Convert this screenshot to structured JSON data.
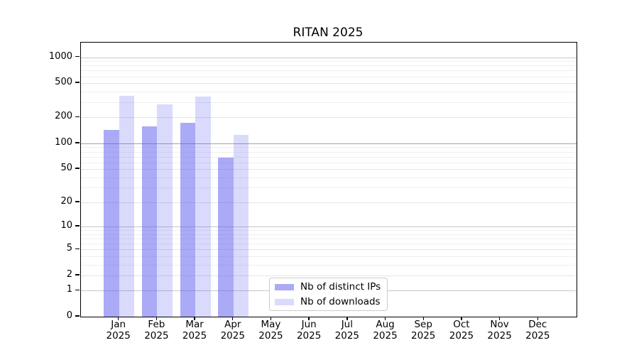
{
  "title": "RITAN 2025",
  "chart_data": {
    "type": "bar",
    "title": "RITAN 2025",
    "y_scale": "log10(1+y)",
    "months": [
      "Jan",
      "Feb",
      "Mar",
      "Apr",
      "May",
      "Jun",
      "Jul",
      "Aug",
      "Sep",
      "Oct",
      "Nov",
      "Dec"
    ],
    "year": "2025",
    "categories": [
      "Jan 2025",
      "Feb 2025",
      "Mar 2025",
      "Apr 2025",
      "May 2025",
      "Jun 2025",
      "Jul 2025",
      "Aug 2025",
      "Sep 2025",
      "Oct 2025",
      "Nov 2025",
      "Dec 2025"
    ],
    "series": [
      {
        "name": "Nb of distinct IPs",
        "values": [
          144,
          159,
          175,
          68,
          null,
          null,
          null,
          null,
          null,
          null,
          null,
          null
        ]
      },
      {
        "name": "Nb of downloads",
        "values": [
          358,
          282,
          349,
          125,
          null,
          null,
          null,
          null,
          null,
          null,
          null,
          null
        ]
      }
    ],
    "y_ticks": [
      0,
      1,
      2,
      5,
      10,
      20,
      50,
      100,
      200,
      500,
      1000
    ],
    "y_minor_gridlines": [
      3,
      4,
      6,
      7,
      8,
      9,
      30,
      40,
      60,
      70,
      80,
      90,
      300,
      400,
      600,
      700,
      800,
      900
    ],
    "ylim": [
      0,
      1475
    ],
    "grid": "horizontal-only",
    "legend_position": "inside-bottom-center"
  },
  "colors": {
    "bar_base": "#5555f0",
    "distinct_ips_alpha": 0.5,
    "downloads_alpha": 0.22,
    "grid_minor": "#efefef",
    "grid_labeled": "#e5e5e5",
    "grid_decade": "#c8c8c8",
    "grid_hundred": "#a3a3a3",
    "axis_color": "#000000",
    "legend_border": "#cccccc"
  }
}
